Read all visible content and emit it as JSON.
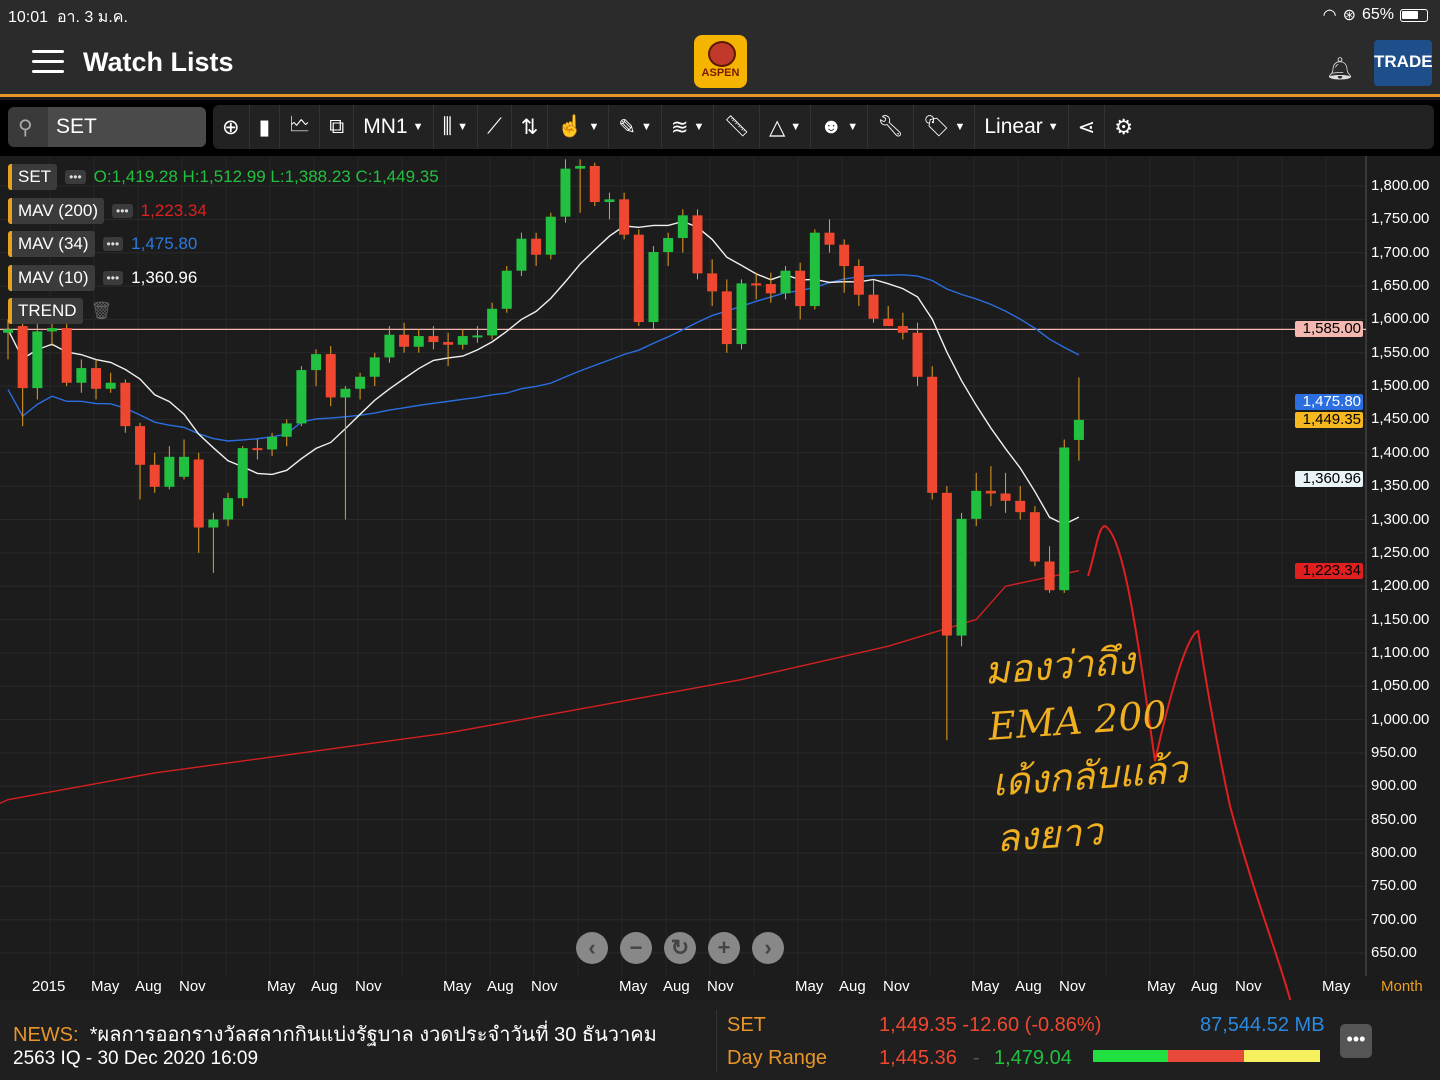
{
  "status": {
    "time": "10:01",
    "date": "อา. 3 ม.ค.",
    "battery": "65%",
    "battery_level": 0.65
  },
  "header": {
    "title": "Watch Lists",
    "logo": "ASPEN",
    "trade": "TRADE"
  },
  "toolbar": {
    "symbol": "SET",
    "timeframe": "MN1",
    "scale": "Linear"
  },
  "legend": [
    {
      "name": "SET",
      "value": "O:1,419.28 H:1,512.99 L:1,388.23 C:1,449.35",
      "color": "#22c040"
    },
    {
      "name": "MAV (200)",
      "value": "1,223.34",
      "color": "#e02020"
    },
    {
      "name": "MAV (34)",
      "value": "1,475.80",
      "color": "#2a7ae0"
    },
    {
      "name": "MAV (10)",
      "value": "1,360.96",
      "color": "#ffffff"
    },
    {
      "name": "TREND",
      "value": "",
      "color": ""
    }
  ],
  "yaxis": [
    "1,800.00",
    "1,750.00",
    "1,700.00",
    "1,650.00",
    "1,600.00",
    "1,550.00",
    "1,500.00",
    "1,450.00",
    "1,400.00",
    "1,350.00",
    "1,300.00",
    "1,250.00",
    "1,200.00",
    "1,150.00",
    "1,100.00",
    "1,050.00",
    "1,000.00",
    "950.00",
    "900.00",
    "850.00",
    "800.00",
    "750.00",
    "700.00",
    "650.00"
  ],
  "yvalues": [
    1800,
    1750,
    1700,
    1650,
    1600,
    1550,
    1500,
    1450,
    1400,
    1350,
    1300,
    1250,
    1200,
    1150,
    1100,
    1050,
    1000,
    950,
    900,
    850,
    800,
    750,
    700,
    650
  ],
  "badges": [
    {
      "text": "1,585.00",
      "value": 1585,
      "bg": "#f4b8b0",
      "fg": "#000"
    },
    {
      "text": "1,475.80",
      "value": 1475.8,
      "bg": "#2a6ee0",
      "fg": "#fff"
    },
    {
      "text": "1,449.35",
      "value": 1449.35,
      "bg": "#f6b820",
      "fg": "#000"
    },
    {
      "text": "1,360.96",
      "value": 1360.96,
      "bg": "#e8f4f8",
      "fg": "#000"
    },
    {
      "text": "1,223.34",
      "value": 1223.34,
      "bg": "#e02020",
      "fg": "#000"
    }
  ],
  "xaxis": [
    "2015",
    "May",
    "Aug",
    "Nov",
    "May",
    "Aug",
    "Nov",
    "May",
    "Aug",
    "Nov",
    "May",
    "Aug",
    "Nov",
    "May",
    "Aug",
    "Nov",
    "May",
    "Aug",
    "Nov",
    "May",
    "Aug",
    "Nov",
    "May",
    "Month"
  ],
  "hline": 1585,
  "candles": {
    "start": "Nov 2014",
    "ohlc": [
      [
        1580,
        1600,
        1540,
        1585
      ],
      [
        1590,
        1600,
        1440,
        1497
      ],
      [
        1497,
        1600,
        1480,
        1582
      ],
      [
        1582,
        1600,
        1560,
        1587
      ],
      [
        1587,
        1595,
        1500,
        1505
      ],
      [
        1505,
        1540,
        1490,
        1527
      ],
      [
        1527,
        1540,
        1480,
        1496
      ],
      [
        1496,
        1520,
        1490,
        1505
      ],
      [
        1505,
        1510,
        1430,
        1440
      ],
      [
        1440,
        1445,
        1330,
        1382
      ],
      [
        1382,
        1400,
        1340,
        1349
      ],
      [
        1349,
        1410,
        1345,
        1394
      ],
      [
        1364,
        1420,
        1360,
        1394
      ],
      [
        1390,
        1400,
        1250,
        1288
      ],
      [
        1288,
        1310,
        1220,
        1300
      ],
      [
        1300,
        1340,
        1290,
        1332
      ],
      [
        1332,
        1410,
        1320,
        1407
      ],
      [
        1407,
        1420,
        1390,
        1405
      ],
      [
        1405,
        1430,
        1395,
        1424
      ],
      [
        1424,
        1450,
        1410,
        1444
      ],
      [
        1444,
        1530,
        1440,
        1524
      ],
      [
        1524,
        1555,
        1500,
        1548
      ],
      [
        1548,
        1560,
        1470,
        1483
      ],
      [
        1483,
        1500,
        1300,
        1496
      ],
      [
        1496,
        1520,
        1480,
        1514
      ],
      [
        1514,
        1550,
        1500,
        1543
      ],
      [
        1543,
        1590,
        1535,
        1577
      ],
      [
        1577,
        1595,
        1550,
        1559
      ],
      [
        1559,
        1585,
        1550,
        1575
      ],
      [
        1575,
        1590,
        1555,
        1566
      ],
      [
        1566,
        1580,
        1530,
        1562
      ],
      [
        1562,
        1585,
        1555,
        1575
      ],
      [
        1575,
        1590,
        1565,
        1576
      ],
      [
        1576,
        1625,
        1570,
        1616
      ],
      [
        1616,
        1680,
        1610,
        1673
      ],
      [
        1673,
        1730,
        1665,
        1721
      ],
      [
        1721,
        1730,
        1680,
        1697
      ],
      [
        1697,
        1760,
        1690,
        1754
      ],
      [
        1754,
        1840,
        1745,
        1826
      ],
      [
        1826,
        1840,
        1760,
        1830
      ],
      [
        1830,
        1835,
        1770,
        1776
      ],
      [
        1776,
        1790,
        1750,
        1780
      ],
      [
        1780,
        1790,
        1720,
        1727
      ],
      [
        1727,
        1735,
        1590,
        1596
      ],
      [
        1596,
        1710,
        1585,
        1701
      ],
      [
        1701,
        1730,
        1680,
        1722
      ],
      [
        1722,
        1765,
        1700,
        1756
      ],
      [
        1756,
        1765,
        1660,
        1669
      ],
      [
        1669,
        1690,
        1620,
        1642
      ],
      [
        1642,
        1660,
        1550,
        1563
      ],
      [
        1563,
        1660,
        1555,
        1654
      ],
      [
        1654,
        1670,
        1630,
        1653
      ],
      [
        1653,
        1670,
        1625,
        1639
      ],
      [
        1639,
        1680,
        1630,
        1673
      ],
      [
        1673,
        1685,
        1600,
        1620
      ],
      [
        1620,
        1735,
        1615,
        1730
      ],
      [
        1730,
        1750,
        1700,
        1712
      ],
      [
        1712,
        1720,
        1640,
        1680
      ],
      [
        1680,
        1690,
        1620,
        1637
      ],
      [
        1637,
        1660,
        1595,
        1601
      ],
      [
        1601,
        1620,
        1590,
        1590
      ],
      [
        1590,
        1610,
        1570,
        1580
      ],
      [
        1580,
        1595,
        1500,
        1514
      ],
      [
        1514,
        1530,
        1330,
        1340
      ],
      [
        1340,
        1350,
        969,
        1126
      ],
      [
        1126,
        1310,
        1110,
        1301
      ],
      [
        1301,
        1370,
        1290,
        1343
      ],
      [
        1343,
        1380,
        1320,
        1339
      ],
      [
        1339,
        1370,
        1310,
        1328
      ],
      [
        1328,
        1350,
        1300,
        1311
      ],
      [
        1311,
        1320,
        1230,
        1237
      ],
      [
        1237,
        1260,
        1190,
        1194
      ],
      [
        1194,
        1420,
        1190,
        1408
      ],
      [
        1419.28,
        1512.99,
        1388.23,
        1449.35
      ]
    ],
    "ma200": [
      [
        0,
        880
      ],
      [
        10,
        920
      ],
      [
        20,
        950
      ],
      [
        30,
        980
      ],
      [
        40,
        1020
      ],
      [
        50,
        1060
      ],
      [
        60,
        1110
      ],
      [
        66,
        1150
      ],
      [
        68,
        1200
      ],
      [
        73,
        1223.34
      ]
    ]
  },
  "annotation": {
    "line1": "มองว่าถึง",
    "line2": "EMA 200",
    "line3": "เด้งกลับแล้ว",
    "line4": "ลงยาว"
  },
  "news": {
    "label": "NEWS:",
    "headline": "*ผลการออกรางวัลสลากกินแบ่งรัฐบาล งวดประจำวันที่ 30 ธันวาคม",
    "line2": "2563  IQ - 30 Dec 2020 16:09"
  },
  "quote": {
    "symbol": "SET",
    "price": "1,449.35 -12.60 (-0.86%)",
    "volume": "87,544.52 MB",
    "range_label": "Day Range",
    "low": "1,445.36",
    "high": "1,479.04",
    "sep": "-"
  },
  "colors": {
    "up": "#22c040",
    "down": "#f04830",
    "accent": "#e8962a"
  }
}
